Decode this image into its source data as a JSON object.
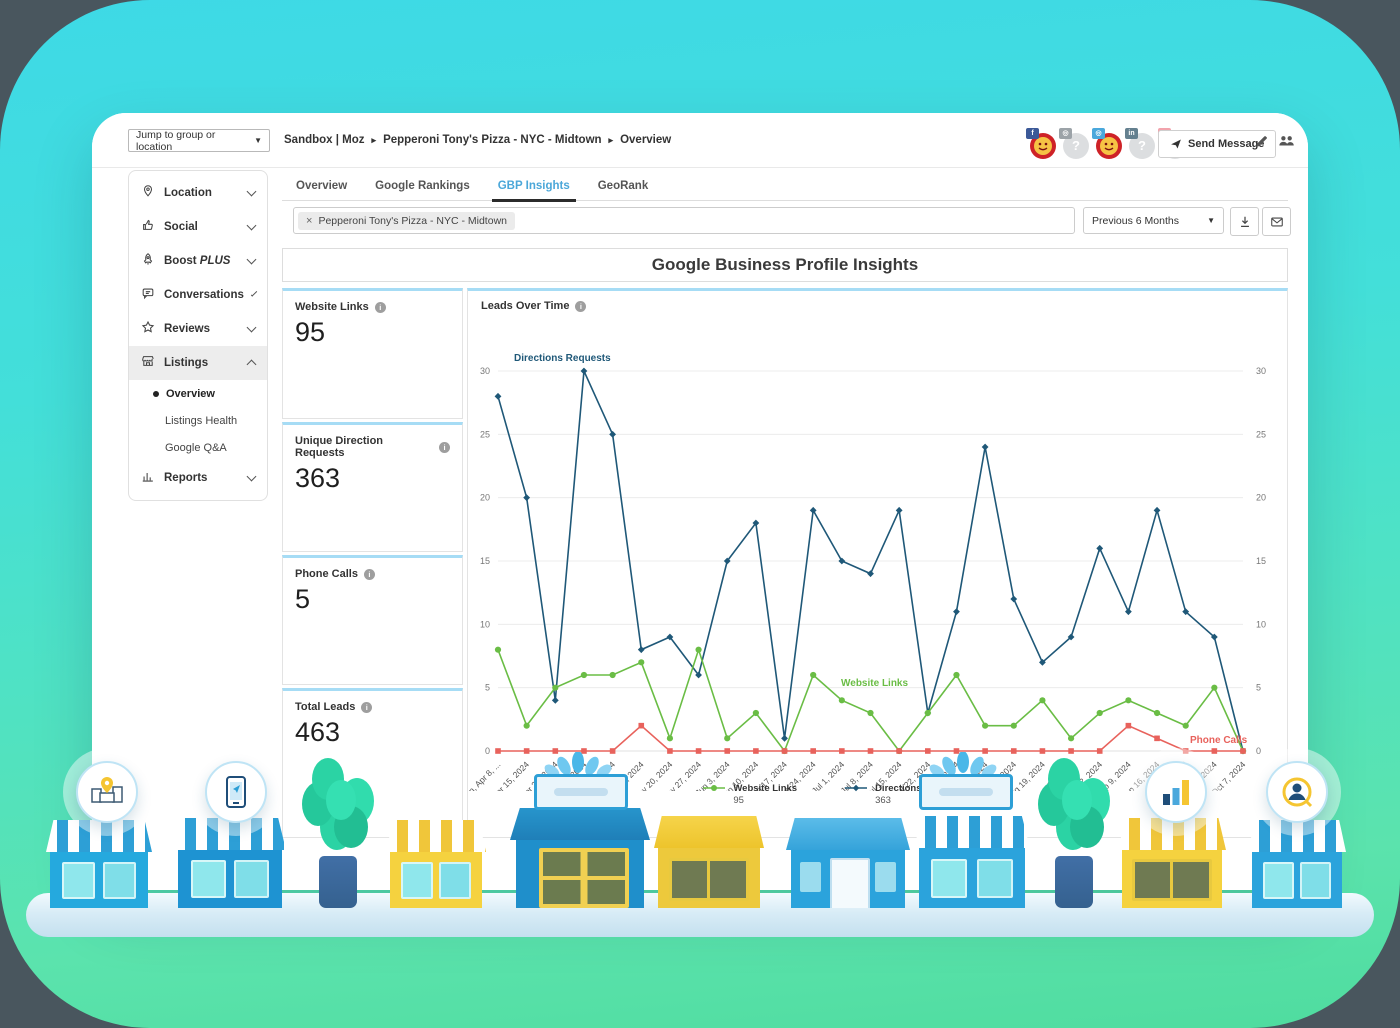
{
  "topbar": {
    "jump_select": "Jump to group or location",
    "breadcrumb": [
      "Sandbox | Moz",
      "Pepperoni Tony's Pizza - NYC - Midtown",
      "Overview"
    ],
    "send_message_label": "Send Message",
    "avatars": [
      {
        "kind": "pizza-logo",
        "network": "facebook",
        "badge_glyph": "f",
        "badge_color": "#3B5998"
      },
      {
        "kind": "placeholder",
        "glyph": "?",
        "network": "instagram",
        "badge_glyph": "",
        "badge_color": "#9CA3A8"
      },
      {
        "kind": "pizza-logo",
        "network": "twitter",
        "badge_glyph": "",
        "badge_color": "#4AA8DC"
      },
      {
        "kind": "placeholder",
        "glyph": "?",
        "network": "linkedin",
        "badge_glyph": "in",
        "badge_color": "#64808F"
      },
      {
        "kind": "placeholder",
        "glyph": "?",
        "network": "instagram",
        "badge_glyph": "",
        "badge_color": "#F2A3AC"
      }
    ]
  },
  "sidebar": {
    "items": [
      {
        "label": "Location",
        "icon": "pin"
      },
      {
        "label": "Social",
        "icon": "thumb"
      },
      {
        "label": "Boost",
        "plus": "PLUS",
        "icon": "rocket"
      },
      {
        "label": "Conversations",
        "icon": "chat"
      },
      {
        "label": "Reviews",
        "icon": "star"
      },
      {
        "label": "Listings",
        "icon": "store",
        "active": true,
        "expanded": true,
        "children": [
          {
            "label": "Overview",
            "active": true
          },
          {
            "label": "Listings Health"
          },
          {
            "label": "Google Q&A"
          }
        ]
      },
      {
        "label": "Reports",
        "icon": "bar-chart"
      }
    ]
  },
  "tabs": [
    {
      "label": "Overview"
    },
    {
      "label": "Google Rankings"
    },
    {
      "label": "GBP Insights",
      "active": true
    },
    {
      "label": "GeoRank"
    }
  ],
  "filters": {
    "chip_remove": "×",
    "location_chip": "Pepperoni Tony's Pizza - NYC - Midtown",
    "date_range": "Previous 6 Months"
  },
  "page_title": "Google Business Profile Insights",
  "stats": [
    {
      "label": "Website Links",
      "value": "95"
    },
    {
      "label": "Unique Direction Requests",
      "value": "363"
    },
    {
      "label": "Phone Calls",
      "value": "5"
    },
    {
      "label": "Total Leads",
      "value": "463"
    }
  ],
  "chart_data": {
    "type": "line",
    "title": "Leads Over Time",
    "x": [
      "Mon, Apr 8, ...",
      "Mon, Apr 15, 2024",
      "Mon, Apr 22, 2024",
      "Mon, Apr 29, 2024",
      "Mon, May 6, 2024",
      "Mon, May 13, 2024",
      "Mon, May 20, 2024",
      "Mon, May 27, 2024",
      "Mon, Jun 3, 2024",
      "Mon, Jun 10, 2024",
      "Mon, Jun 17, 2024",
      "Mon, Jun 24, 2024",
      "Mon, Jul 1, 2024",
      "Mon, Jul 8, 2024",
      "Mon, Jul 15, 2024",
      "Mon, Jul 22, 2024",
      "Mon, Jul 29, 2024",
      "Mon, Aug 5, 2024",
      "Mon, Aug 12, 2024",
      "Mon, Aug 19, 2024",
      "Mon, Aug 26, 2024",
      "Mon, Sep 2, 2024",
      "Mon, Sep 9, 2024",
      "Mon, Sep 16, 2024",
      "Mon, Sep 23, 2024",
      "Mon, Sep 30, 2024",
      "Mon, Oct 7, 2024"
    ],
    "ylim": [
      0,
      30
    ],
    "yticks": [
      0,
      5,
      10,
      15,
      20,
      25,
      30
    ],
    "grid": true,
    "series": [
      {
        "name": "Directions Requests",
        "color": "#1F5878",
        "marker": "diamond",
        "values": [
          28,
          20,
          4,
          30,
          25,
          8,
          9,
          6,
          15,
          18,
          1,
          19,
          15,
          14,
          19,
          3,
          11,
          24,
          12,
          7,
          9,
          16,
          11,
          19,
          11,
          9,
          0
        ]
      },
      {
        "name": "Website Links",
        "color": "#6ABD45",
        "marker": "circle",
        "values": [
          8,
          2,
          5,
          6,
          6,
          7,
          1,
          8,
          1,
          3,
          0,
          6,
          4,
          3,
          0,
          3,
          6,
          2,
          2,
          4,
          1,
          3,
          4,
          3,
          2,
          5,
          0
        ]
      },
      {
        "name": "Phone Calls",
        "color": "#E8625C",
        "marker": "square",
        "values": [
          0,
          0,
          0,
          0,
          0,
          2,
          0,
          0,
          0,
          0,
          0,
          0,
          0,
          0,
          0,
          0,
          0,
          0,
          0,
          0,
          0,
          0,
          2,
          1,
          0,
          0,
          0
        ]
      }
    ],
    "annotations": [
      "Directions Requests",
      "Website Links",
      "Phone Calls"
    ],
    "legend_position": "bottom-center",
    "legend": [
      {
        "name": "Website Links",
        "value": "95",
        "series": 1
      },
      {
        "name": "Directions Request",
        "value": "363",
        "series": 0
      }
    ]
  },
  "colors": {
    "tab_active": "#4BA7D9",
    "card_accent": "#A6DCF5",
    "line_blue": "#1F5878",
    "line_green": "#6ABD45",
    "line_red": "#E8625C"
  }
}
